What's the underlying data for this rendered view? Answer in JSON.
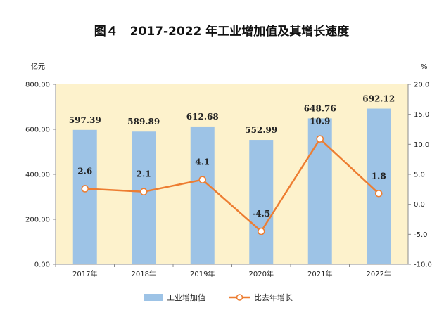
{
  "chart_data": {
    "type": "bar",
    "title": "图４　2017-2022 年工业增加值及其增长速度",
    "ylabel_left": "亿元",
    "ylabel_right": "%",
    "categories": [
      "2017年",
      "2018年",
      "2019年",
      "2020年",
      "2021年",
      "2022年"
    ],
    "series": [
      {
        "name": "工业增加值",
        "type": "bar",
        "axis": "left",
        "values": [
          597.39,
          589.89,
          612.68,
          552.99,
          648.76,
          692.12
        ],
        "labels": [
          "597.39",
          "589.89",
          "612.68",
          "552.99",
          "648.76",
          "692.12"
        ],
        "color": "#9dc3e6"
      },
      {
        "name": "比去年增长",
        "type": "line",
        "axis": "right",
        "values": [
          2.6,
          2.1,
          4.1,
          -4.5,
          10.9,
          1.8
        ],
        "labels": [
          "2.6",
          "2.1",
          "4.1",
          "-4.5",
          "10.9",
          "1.8"
        ],
        "color": "#ed7d31"
      }
    ],
    "ylim_left": [
      0,
      800
    ],
    "ylim_right": [
      -10,
      20
    ],
    "yticks_left": [
      "0.00",
      "200.00",
      "400.00",
      "600.00",
      "800.00"
    ],
    "yticks_right": [
      "-10.0",
      "-5.0",
      "0.0",
      "5.0",
      "10.0",
      "15.0",
      "20.0"
    ],
    "plot_background": "#fdf2cc",
    "legend_position": "bottom"
  }
}
